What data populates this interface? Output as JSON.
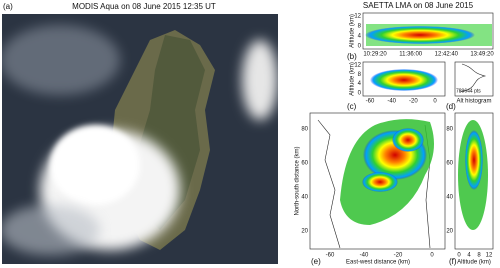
{
  "panel_a": {
    "label": "(a)",
    "title": "MODIS Aqua on 08 June 2015 12:35 UT"
  },
  "lma": {
    "title": "SAETTA LMA on 08 June 2015",
    "panel_b": {
      "label": "(b)",
      "y_axis_label": "Altitude (km)",
      "y_ticks": [
        "12",
        "8",
        "4",
        "0"
      ],
      "x_ticks": [
        "10:29:20",
        "11:36:00",
        "12:42:40",
        "13:49:20"
      ]
    },
    "panel_c": {
      "label": "(c)",
      "y_axis_label": "Altitude (km)",
      "y_ticks": [
        "12",
        "8",
        "4",
        "0"
      ],
      "x_ticks": [
        "-60",
        "-40",
        "-20",
        "0"
      ]
    },
    "panel_d": {
      "label": "(d)",
      "points": "789644 pts",
      "x_axis_label": "Alt histogram"
    },
    "panel_e": {
      "label": "(e)",
      "y_axis_label": "North-south distance (km)",
      "y_ticks": [
        "80",
        "60",
        "40",
        "20"
      ],
      "x_axis_label": "East-west distance (km)",
      "x_ticks": [
        "-60",
        "-40",
        "-20",
        "0"
      ]
    },
    "panel_f": {
      "label": "(f)",
      "x_axis_label": "Altitude (km)",
      "x_ticks": [
        "0",
        "4",
        "8",
        "12"
      ],
      "y_ticks": [
        "80",
        "60",
        "40",
        "20"
      ]
    }
  }
}
